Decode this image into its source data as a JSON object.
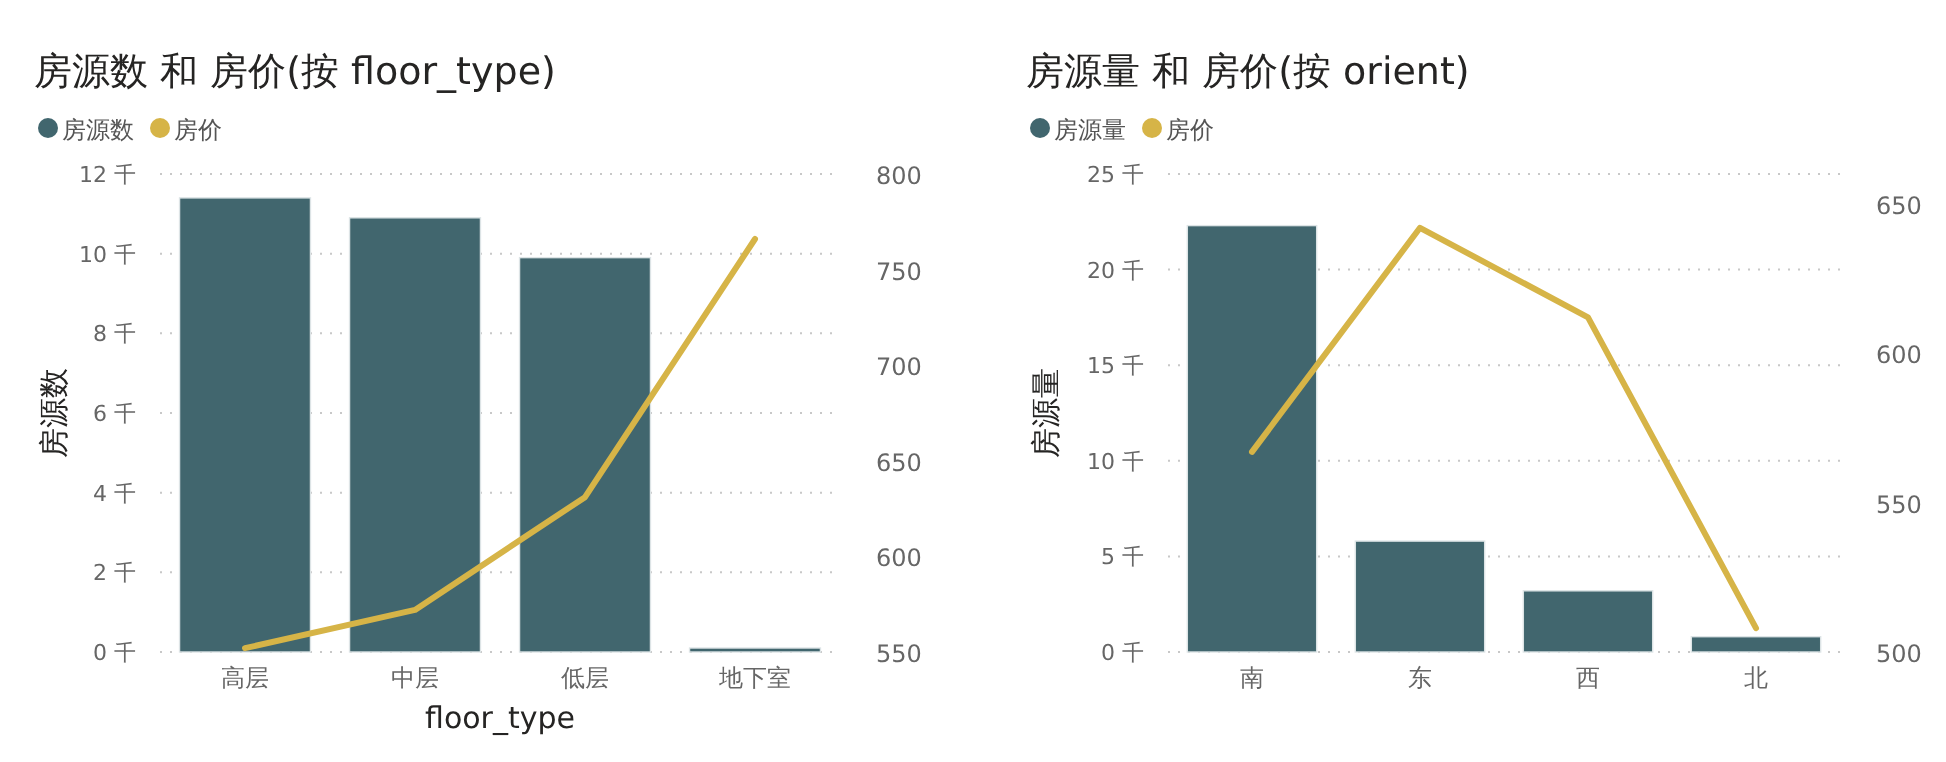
{
  "chart_data": [
    {
      "type": "bar",
      "title": "房源数 和 房价(按 floor_type)",
      "xlabel": "floor_type",
      "ylabel": "房源数",
      "legend": "top left",
      "grid": "y",
      "categories": [
        "高层",
        "中层",
        "低层",
        "地下室"
      ],
      "series": [
        {
          "name": "房源数",
          "color": "#41666e",
          "values": [
            11.4,
            10.9,
            9.9,
            0.1
          ]
        },
        {
          "name": "房价",
          "type": "line",
          "axis": "y2",
          "color": "#d6b447",
          "values": [
            552,
            572,
            631,
            766
          ]
        }
      ],
      "ylim": [
        0,
        12
      ],
      "yticks": [
        {
          "value": 0,
          "label": "0 千"
        },
        {
          "value": 2,
          "label": "2 千"
        },
        {
          "value": 4,
          "label": "4 千"
        },
        {
          "value": 6,
          "label": "6 千"
        },
        {
          "value": 8,
          "label": "8 千"
        },
        {
          "value": 10,
          "label": "10 千"
        },
        {
          "value": 12,
          "label": "12 千"
        }
      ],
      "y2lim": [
        550,
        800
      ],
      "y2ticks": [
        550,
        600,
        650,
        700,
        750,
        800
      ]
    },
    {
      "type": "bar",
      "title": "房源量 和 房价(按 orient)",
      "ylabel": "房源量",
      "legend": "top left",
      "grid": "y",
      "categories": [
        "南",
        "东",
        "西",
        "北"
      ],
      "series": [
        {
          "name": "房源量",
          "color": "#41666e",
          "values": [
            22.3,
            5.8,
            3.2,
            0.8
          ]
        },
        {
          "name": "房价",
          "type": "line",
          "axis": "y2",
          "color": "#d6b447",
          "values": [
            567,
            642,
            612,
            508
          ]
        }
      ],
      "ylim": [
        0,
        25
      ],
      "yticks": [
        {
          "value": 0,
          "label": "0 千"
        },
        {
          "value": 5,
          "label": "5 千"
        },
        {
          "value": 10,
          "label": "10 千"
        },
        {
          "value": 15,
          "label": "15 千"
        },
        {
          "value": 20,
          "label": "20 千"
        },
        {
          "value": 25,
          "label": "25 千"
        }
      ],
      "y2lim": [
        500,
        660
      ],
      "y2ticks": [
        500,
        550,
        600,
        650
      ]
    }
  ]
}
